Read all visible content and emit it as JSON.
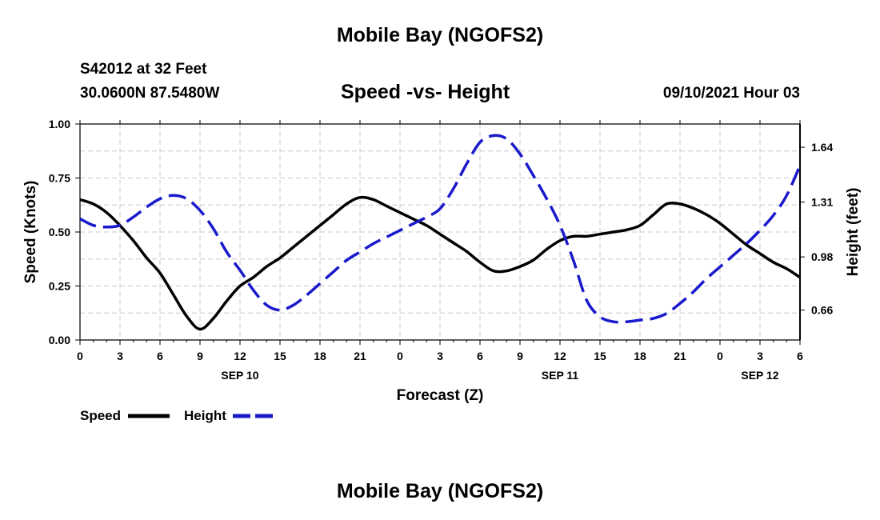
{
  "header": {
    "title": "Mobile Bay (NGOFS2)",
    "station": "S42012 at 32 Feet",
    "coords": "30.0600N  87.5480W",
    "subtitle": "Speed -vs- Height",
    "datetime": "09/10/2021 Hour 03"
  },
  "footer": {
    "title": "Mobile Bay (NGOFS2)"
  },
  "legend": {
    "speed_label": "Speed",
    "height_label": "Height"
  },
  "colors": {
    "speed": "#000000",
    "height": "#1a1acc",
    "grid": "#c8c8c8"
  },
  "chart_data": {
    "type": "line",
    "xlabel": "Forecast (Z)",
    "ylabel": "Speed (Knots)",
    "y2label": "Height (feet)",
    "grid": true,
    "legend_position": "bottom-left",
    "x_range": [
      0,
      54
    ],
    "x_ticks": [
      0,
      3,
      6,
      9,
      12,
      15,
      18,
      21,
      24,
      27,
      30,
      33,
      36,
      39,
      42,
      45,
      48,
      51,
      54
    ],
    "x_tick_labels": [
      "0",
      "3",
      "6",
      "9",
      "12",
      "15",
      "18",
      "21",
      "0",
      "3",
      "6",
      "9",
      "12",
      "15",
      "18",
      "21",
      "0",
      "3",
      "6"
    ],
    "date_labels": [
      {
        "label": "SEP 10",
        "at_hour": 12
      },
      {
        "label": "SEP 11",
        "at_hour": 36
      },
      {
        "label": "SEP 12",
        "at_hour": 51
      }
    ],
    "ylim": [
      0,
      1
    ],
    "y_ticks": [
      0,
      0.25,
      0.5,
      0.75,
      1.0
    ],
    "y_tick_labels": [
      "0.00",
      "0.25",
      "0.50",
      "0.75",
      "1.00"
    ],
    "y2lim": [
      0.48,
      1.78
    ],
    "y2_ticks": [
      0.66,
      0.98,
      1.31,
      1.64
    ],
    "y2_tick_labels": [
      "0.66",
      "0.98",
      "1.31",
      "1.64"
    ],
    "series": [
      {
        "name": "Speed",
        "axis": "left",
        "style": "solid",
        "x": [
          0,
          1,
          2,
          3,
          4,
          5,
          6,
          7,
          8,
          9,
          10,
          11,
          12,
          13,
          14,
          15,
          16,
          17,
          18,
          19,
          20,
          21,
          22,
          23,
          24,
          25,
          26,
          27,
          28,
          29,
          30,
          31,
          32,
          33,
          34,
          35,
          36,
          37,
          38,
          39,
          40,
          41,
          42,
          43,
          44,
          45,
          46,
          47,
          48,
          49,
          50,
          51,
          52,
          53,
          54
        ],
        "values": [
          0.65,
          0.63,
          0.59,
          0.53,
          0.46,
          0.38,
          0.31,
          0.21,
          0.11,
          0.05,
          0.1,
          0.18,
          0.25,
          0.29,
          0.34,
          0.38,
          0.43,
          0.48,
          0.53,
          0.58,
          0.63,
          0.66,
          0.65,
          0.62,
          0.59,
          0.56,
          0.53,
          0.49,
          0.45,
          0.41,
          0.36,
          0.32,
          0.32,
          0.34,
          0.37,
          0.42,
          0.46,
          0.48,
          0.48,
          0.49,
          0.5,
          0.51,
          0.53,
          0.58,
          0.63,
          0.63,
          0.61,
          0.58,
          0.54,
          0.49,
          0.44,
          0.4,
          0.36,
          0.33,
          0.29
        ]
      },
      {
        "name": "Height",
        "axis": "right",
        "style": "dashed",
        "x": [
          0,
          1,
          2,
          3,
          4,
          5,
          6,
          7,
          8,
          9,
          10,
          11,
          12,
          13,
          14,
          15,
          16,
          17,
          18,
          19,
          20,
          21,
          22,
          23,
          24,
          25,
          26,
          27,
          28,
          29,
          30,
          31,
          32,
          33,
          34,
          35,
          36,
          37,
          38,
          39,
          40,
          41,
          42,
          43,
          44,
          45,
          46,
          47,
          48,
          49,
          50,
          51,
          52,
          53,
          54
        ],
        "values": [
          1.21,
          1.17,
          1.16,
          1.17,
          1.22,
          1.28,
          1.33,
          1.35,
          1.33,
          1.26,
          1.15,
          1.01,
          0.9,
          0.78,
          0.69,
          0.66,
          0.69,
          0.75,
          0.82,
          0.89,
          0.96,
          1.01,
          1.06,
          1.1,
          1.14,
          1.18,
          1.22,
          1.27,
          1.39,
          1.54,
          1.67,
          1.71,
          1.69,
          1.6,
          1.47,
          1.33,
          1.17,
          0.96,
          0.72,
          0.62,
          0.59,
          0.59,
          0.6,
          0.61,
          0.64,
          0.7,
          0.77,
          0.85,
          0.92,
          0.99,
          1.06,
          1.14,
          1.23,
          1.35,
          1.53
        ]
      }
    ]
  }
}
